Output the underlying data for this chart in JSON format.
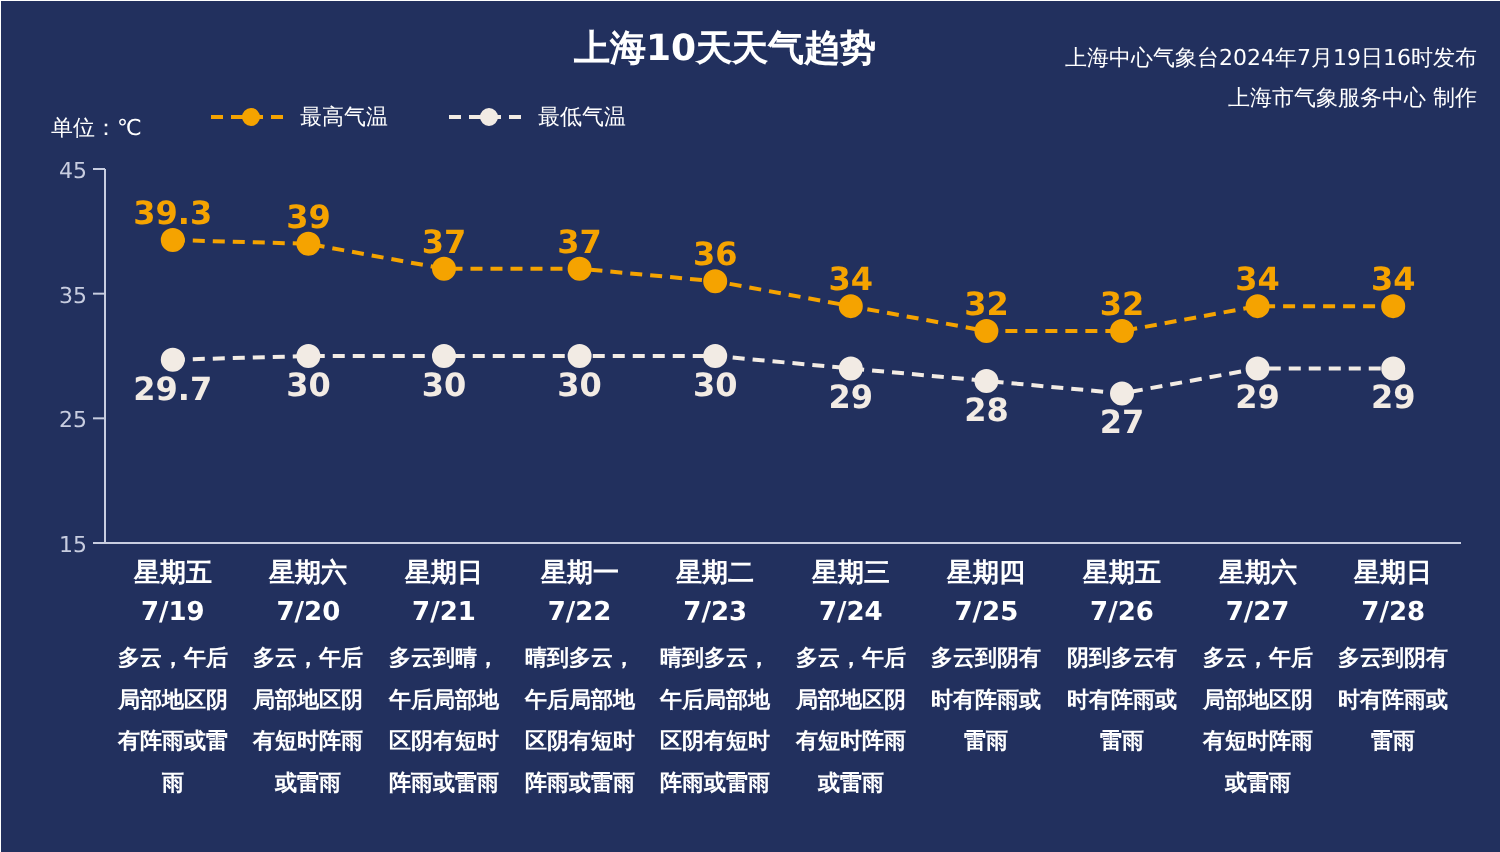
{
  "chart_data": {
    "type": "line",
    "title": "上海10天天气趋势",
    "ylabel": "单位：℃",
    "categories": [
      "星期五\n7/19",
      "星期六\n7/20",
      "星期日\n7/21",
      "星期一\n7/22",
      "星期二\n7/23",
      "星期三\n7/24",
      "星期四\n7/25",
      "星期五\n7/26",
      "星期六\n7/27",
      "星期日\n7/28"
    ],
    "series": [
      {
        "name": "最高气温",
        "color": "#f5a300",
        "values": [
          39.3,
          39,
          37,
          37,
          36,
          34,
          32,
          32,
          34,
          34
        ]
      },
      {
        "name": "最低气温",
        "color": "#f2ebe4",
        "values": [
          29.7,
          30,
          30,
          30,
          30,
          29,
          28,
          27,
          29,
          29
        ]
      }
    ],
    "ylim": [
      15,
      45
    ],
    "yticks": [
      15,
      25,
      35,
      45
    ],
    "grid": false,
    "legend": "top left",
    "marker": "circle",
    "line_style": "dashed",
    "data_labels": true,
    "annotations": [
      "上海中心气象台2024年7月19日16时发布",
      "上海市气象服务中心 制作",
      "多云，午后局部地区阴有阵雨或雷雨",
      "多云，午后局部地区阴有短时阵雨或雷雨",
      "多云到晴，午后局部地区阴有短时阵雨或雷雨",
      "晴到多云，午后局部地区阴有短时阵雨或雷雨",
      "晴到多云，午后局部地区阴有短时阵雨或雷雨",
      "多云，午后局部地区阴有短时阵雨或雷雨",
      "多云到阴有时有阵雨或雷雨",
      "阴到多云有时有阵雨或雷雨",
      "多云，午后局部地区阴有短时阵雨或雷雨",
      "多云到阴有时有阵雨或雷雨"
    ]
  }
}
